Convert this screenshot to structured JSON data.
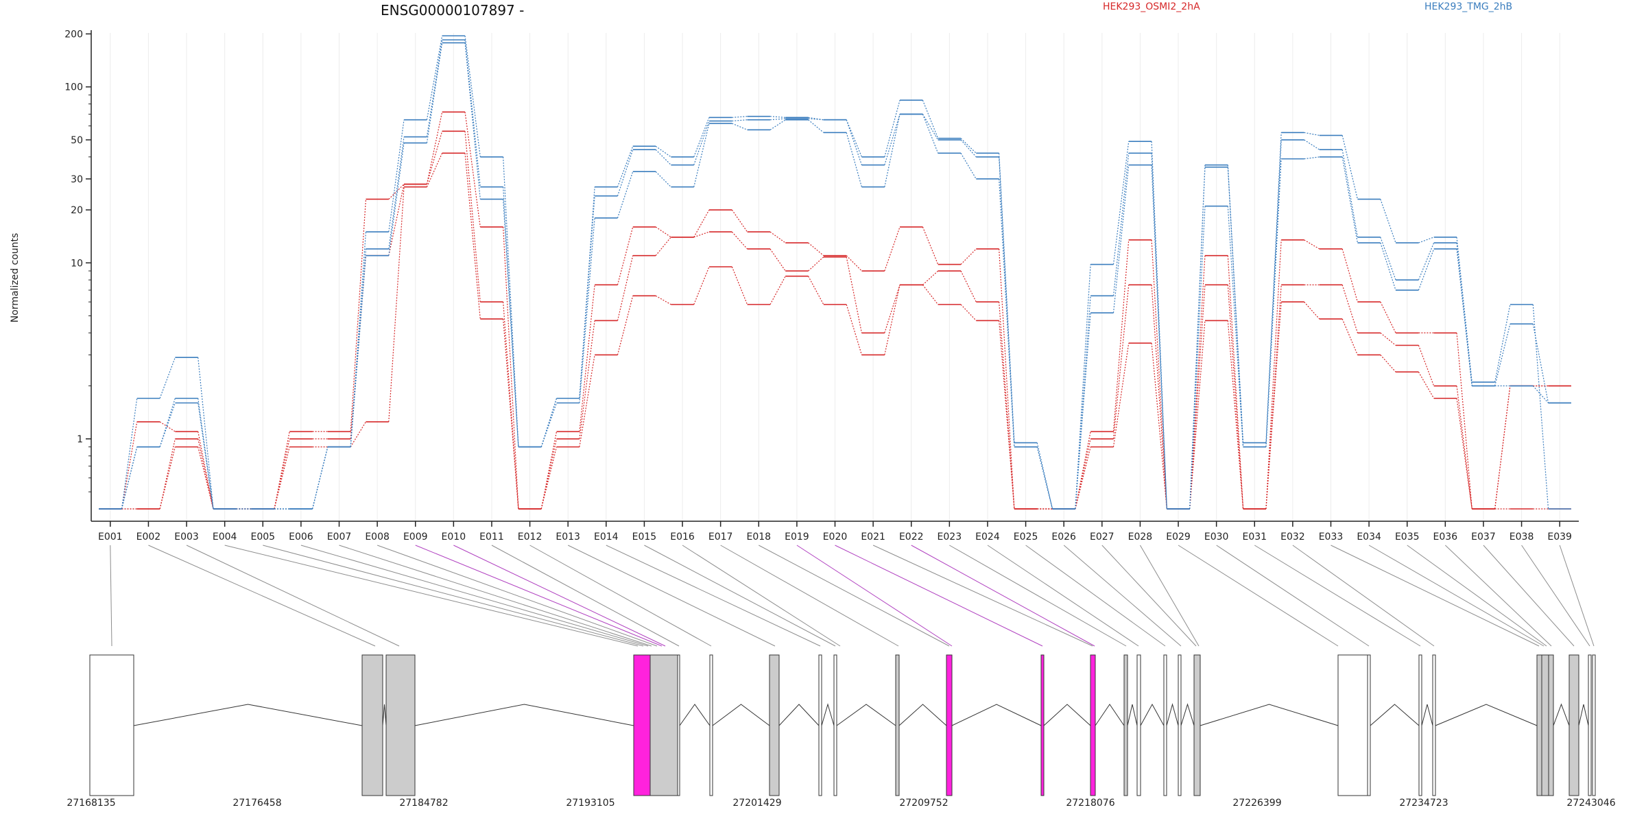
{
  "chart_data": {
    "type": "line",
    "title": "ENSG00000107897 -",
    "ylabel": "Normalized counts",
    "yscale": "log",
    "yticks": [
      1,
      10,
      20,
      30,
      50,
      100,
      200
    ],
    "ytick_labels": [
      "1",
      "10",
      "20",
      "30",
      "50",
      "100",
      "200"
    ],
    "grid": "vertical",
    "legend": [
      {
        "name": "HEK293_OSMI2_2hA",
        "color": "#d62728"
      },
      {
        "name": "HEK293_TMG_2hB",
        "color": "#3a7dbe"
      }
    ],
    "categories": [
      "E001",
      "E002",
      "E003",
      "E004",
      "E005",
      "E006",
      "E007",
      "E008",
      "E009",
      "E010",
      "E011",
      "E012",
      "E013",
      "E014",
      "E015",
      "E016",
      "E017",
      "E018",
      "E019",
      "E020",
      "E021",
      "E022",
      "E023",
      "E024",
      "E025",
      "E026",
      "E027",
      "E028",
      "E029",
      "E030",
      "E031",
      "E032",
      "E033",
      "E034",
      "E035",
      "E036",
      "E037",
      "E038",
      "E039"
    ],
    "series": [
      {
        "group": "HEK293_OSMI2_2hA",
        "color": "#d62728",
        "values": [
          0.4,
          1.25,
          1.1,
          0.4,
          0.4,
          1.1,
          1.1,
          23,
          28,
          72,
          16,
          0.4,
          1.1,
          7.5,
          16,
          14,
          20,
          15,
          13,
          11,
          9,
          16,
          9.8,
          12,
          0.4,
          0.4,
          1.1,
          13.5,
          0.4,
          11,
          0.4,
          13.5,
          12,
          6,
          4,
          4,
          0.4,
          2,
          2
        ]
      },
      {
        "group": "HEK293_OSMI2_2hA",
        "color": "#d62728",
        "values": [
          0.4,
          0.4,
          1.0,
          0.4,
          0.4,
          1.0,
          1.0,
          11,
          28,
          56,
          6,
          0.4,
          1.0,
          4.7,
          11,
          14,
          15,
          12,
          9,
          10.8,
          4,
          7.5,
          9,
          6,
          0.4,
          0.4,
          1.0,
          7.5,
          0.4,
          7.5,
          0.4,
          7.5,
          7.5,
          4,
          3.4,
          2,
          0.4,
          2,
          2
        ]
      },
      {
        "group": "HEK293_OSMI2_2hA",
        "color": "#d62728",
        "values": [
          0.4,
          0.4,
          0.9,
          0.4,
          0.4,
          0.9,
          0.9,
          1.25,
          27,
          42,
          4.8,
          0.4,
          0.9,
          3,
          6.5,
          5.8,
          9.5,
          5.8,
          8.4,
          5.8,
          3,
          7.5,
          5.8,
          4.7,
          0.4,
          0.4,
          0.9,
          3.5,
          0.4,
          4.7,
          0.4,
          6,
          4.8,
          3,
          2.4,
          1.7,
          0.4,
          0.4,
          0.4
        ]
      },
      {
        "group": "HEK293_TMG_2hB",
        "color": "#3a7dbe",
        "values": [
          0.4,
          1.7,
          2.9,
          0.4,
          0.4,
          0.4,
          0.9,
          15,
          65,
          195,
          40,
          0.9,
          1.7,
          27,
          46,
          40,
          67,
          68,
          67,
          65,
          40,
          84,
          51,
          42,
          0.95,
          0.4,
          9.8,
          49,
          0.4,
          36,
          0.95,
          55,
          53,
          23,
          13,
          14,
          2.1,
          5.8,
          0.4
        ]
      },
      {
        "group": "HEK293_TMG_2hB",
        "color": "#3a7dbe",
        "values": [
          0.4,
          0.9,
          1.7,
          0.4,
          0.4,
          0.4,
          0.9,
          12,
          52,
          185,
          27,
          0.9,
          1.7,
          24,
          44,
          36,
          64,
          65,
          66,
          65,
          36,
          70,
          50,
          40,
          0.9,
          0.4,
          6.5,
          42,
          0.4,
          35,
          0.9,
          50,
          44,
          14,
          8,
          13,
          2.0,
          4.5,
          1.6
        ]
      },
      {
        "group": "HEK293_TMG_2hB",
        "color": "#3a7dbe",
        "values": [
          0.4,
          0.9,
          1.6,
          0.4,
          0.4,
          0.4,
          0.9,
          11,
          48,
          178,
          23,
          0.9,
          1.6,
          18,
          33,
          27,
          62,
          57,
          65,
          55,
          27,
          70,
          42,
          30,
          0.9,
          0.4,
          5.2,
          36,
          0.4,
          21,
          0.9,
          39,
          40,
          13,
          7,
          12,
          2.0,
          2.0,
          1.6
        ]
      }
    ],
    "genomic_ticks": [
      "27168135",
      "27176458",
      "27184782",
      "27193105",
      "27201429",
      "27209752",
      "27218076",
      "27226399",
      "27234723",
      "27243046"
    ]
  }
}
